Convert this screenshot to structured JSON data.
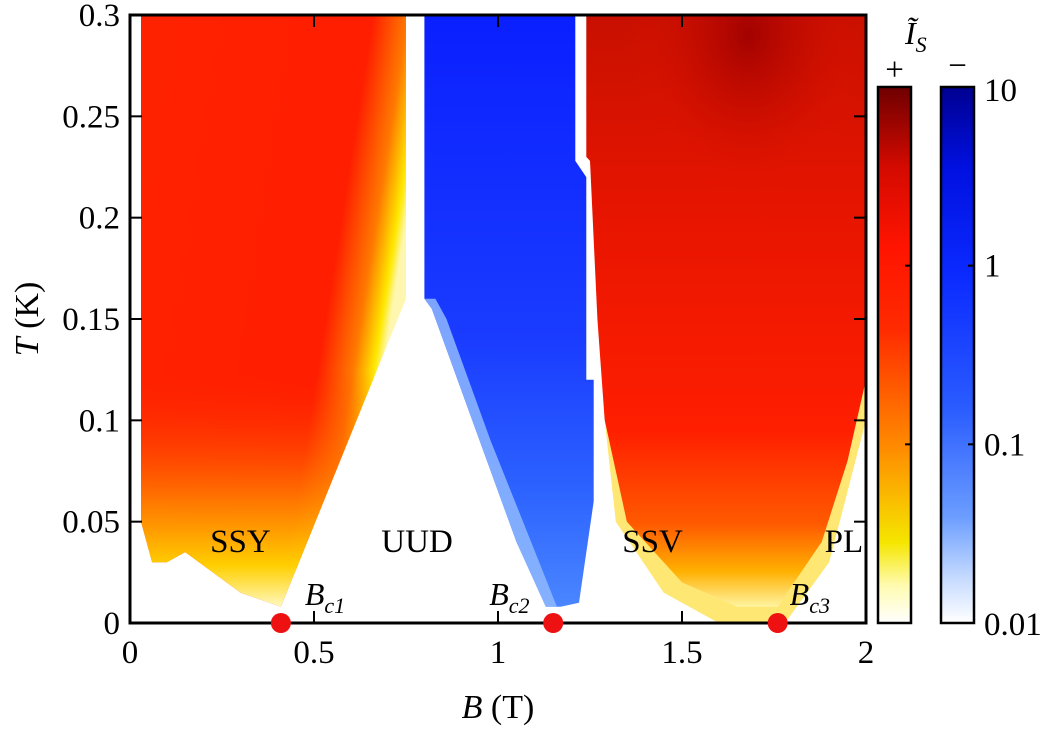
{
  "chart_data": {
    "type": "heatmap",
    "title": "",
    "xlabel": "B (T)",
    "ylabel": "T (K)",
    "xlim": [
      0,
      2
    ],
    "ylim": [
      0,
      0.3
    ],
    "xticks": [
      0,
      0.5,
      1,
      1.5,
      2
    ],
    "xtick_labels": [
      "0",
      "0.5",
      "1",
      "1.5",
      "2"
    ],
    "yticks": [
      0,
      0.05,
      0.1,
      0.15,
      0.2,
      0.25,
      0.3
    ],
    "ytick_labels": [
      "0",
      "0.05",
      "0.1",
      "0.15",
      "0.2",
      "0.25",
      "0.3"
    ],
    "colorbar": {
      "title": "Ĩ_S",
      "positive_sign": "+",
      "negative_sign": "−",
      "scale": "log",
      "range": [
        0.01,
        10
      ],
      "ticks": [
        0.01,
        0.1,
        1,
        10
      ],
      "tick_labels": [
        "0.01",
        "0.1",
        "1",
        "10"
      ],
      "positive_colors": [
        "#ffffff",
        "#f5e600",
        "#ff8a00",
        "#ff1a00",
        "#7a0000"
      ],
      "negative_colors": [
        "#ffffff",
        "#7fb0ff",
        "#2a5cff",
        "#0b22e6",
        "#00008b"
      ]
    },
    "regions": [
      {
        "label": "SSY",
        "sign": "+",
        "b": 0.3,
        "t": 0.041
      },
      {
        "label": "UUD",
        "sign": "none",
        "b": 0.78,
        "t": 0.041
      },
      {
        "label": "SSV",
        "sign": "+",
        "b": 1.42,
        "t": 0.041
      },
      {
        "label": "PL",
        "sign": "+",
        "b": 1.94,
        "t": 0.041
      }
    ],
    "critical_points": [
      {
        "label": "B_c1",
        "base": "B",
        "sub": "c1",
        "b": 0.41,
        "t": 0
      },
      {
        "label": "B_c2",
        "base": "B",
        "sub": "c2",
        "b": 1.15,
        "t": 0
      },
      {
        "label": "B_c3",
        "base": "B",
        "sub": "c3",
        "b": 1.76,
        "t": 0
      }
    ],
    "boundaries": {
      "SSY": {
        "sign": "+",
        "poly": [
          [
            0.03,
            0.3
          ],
          [
            0.75,
            0.3
          ],
          [
            0.75,
            0.16
          ],
          [
            0.41,
            0.008
          ],
          [
            0.3,
            0.015
          ],
          [
            0.15,
            0.035
          ],
          [
            0.1,
            0.03
          ],
          [
            0.06,
            0.03
          ],
          [
            0.03,
            0.05
          ]
        ]
      },
      "UUD": {
        "sign": "-",
        "poly": [
          [
            0.8,
            0.3
          ],
          [
            1.21,
            0.3
          ],
          [
            1.21,
            0.228
          ],
          [
            1.24,
            0.22
          ],
          [
            1.24,
            0.12
          ],
          [
            1.26,
            0.12
          ],
          [
            1.26,
            0.06
          ],
          [
            1.22,
            0.01
          ],
          [
            1.17,
            0.008
          ],
          [
            1.13,
            0.008
          ],
          [
            1.05,
            0.04
          ],
          [
            0.95,
            0.09
          ],
          [
            0.82,
            0.155
          ],
          [
            0.8,
            0.16
          ]
        ]
      },
      "SSV": {
        "sign": "+",
        "poly": [
          [
            1.24,
            0.3
          ],
          [
            2,
            0.3
          ],
          [
            2,
            0.12
          ],
          [
            1.95,
            0.08
          ],
          [
            1.88,
            0.04
          ],
          [
            1.76,
            0.008
          ],
          [
            1.65,
            0.008
          ],
          [
            1.5,
            0.02
          ],
          [
            1.35,
            0.05
          ],
          [
            1.29,
            0.1
          ],
          [
            1.27,
            0.15
          ],
          [
            1.25,
            0.228
          ],
          [
            1.24,
            0.23
          ]
        ]
      },
      "SSV_dark_peak": {
        "b": 1.68,
        "t": 0.29
      }
    }
  }
}
